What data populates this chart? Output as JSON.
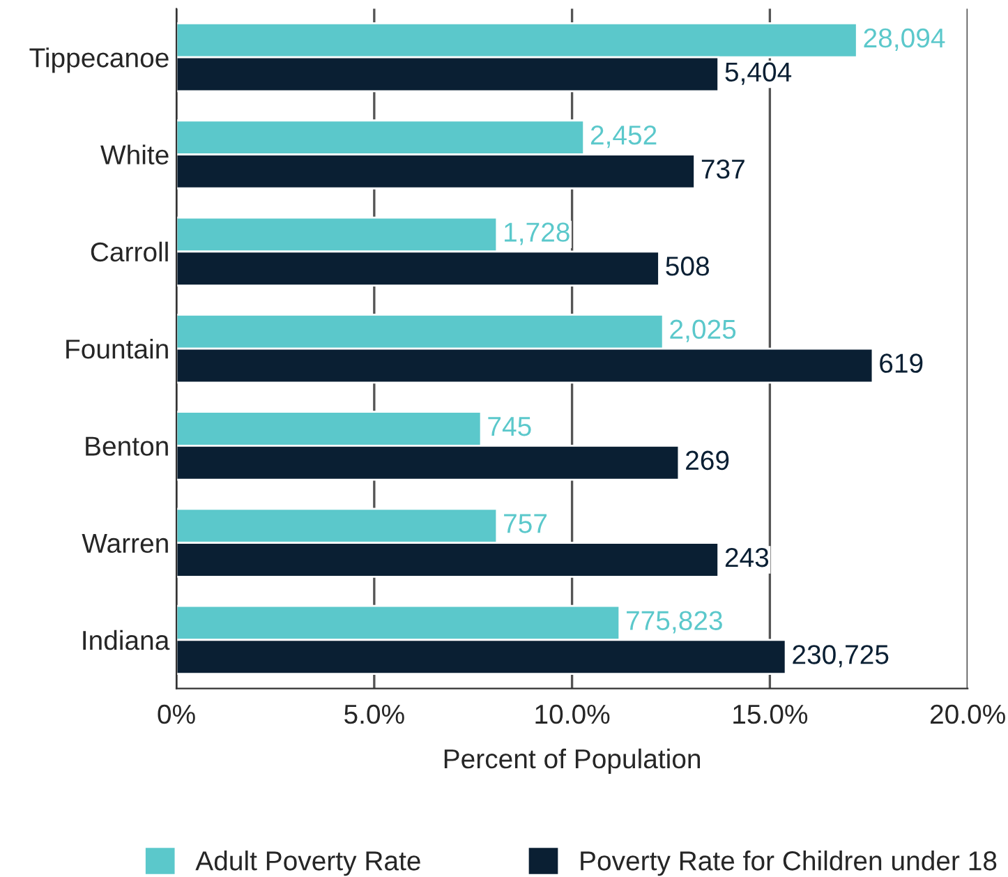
{
  "chart_data": {
    "type": "bar",
    "orientation": "horizontal",
    "xlabel": "Percent of Population",
    "categories": [
      "Tippecanoe",
      "White",
      "Carroll",
      "Fountain",
      "Benton",
      "Warren",
      "Indiana"
    ],
    "series": [
      {
        "name": "Adult Poverty Rate",
        "color": "#5bc8cb",
        "values": [
          17.2,
          10.3,
          8.1,
          12.3,
          7.7,
          8.1,
          11.2
        ]
      },
      {
        "name": "Poverty Rate for Children under 18",
        "color": "#0a1f33",
        "values": [
          13.7,
          13.1,
          12.2,
          17.6,
          12.7,
          13.7,
          15.4
        ]
      }
    ],
    "annotations": [
      {
        "text": "28,094",
        "x": 17.2,
        "y": "Tippecanoe"
      },
      {
        "text": "5,404",
        "x": 13.7,
        "y": "Tippecanoe"
      },
      {
        "text": "2,452",
        "x": 10.3,
        "y": "White"
      },
      {
        "text": "737",
        "x": 13.1,
        "y": "White"
      },
      {
        "text": "1,728",
        "x": 8.1,
        "y": "Carroll"
      },
      {
        "text": "508",
        "x": 12.2,
        "y": "Carroll"
      },
      {
        "text": "2,025",
        "x": 12.3,
        "y": "Fountain"
      },
      {
        "text": "619",
        "x": 17.6,
        "y": "Fountain"
      },
      {
        "text": "745",
        "x": 7.7,
        "y": "Benton"
      },
      {
        "text": "269",
        "x": 12.7,
        "y": "Benton"
      },
      {
        "text": "757",
        "x": 8.1,
        "y": "Warren"
      },
      {
        "text": "243",
        "x": 13.7,
        "y": "Warren"
      },
      {
        "text": "775,823",
        "x": 11.2,
        "y": "Indiana"
      },
      {
        "text": "230,725",
        "x": 15.4,
        "y": "Indiana"
      }
    ],
    "xlim": [
      0,
      20
    ],
    "xticks": [
      {
        "value": 0,
        "label": "0%"
      },
      {
        "value": 5,
        "label": "5.0%"
      },
      {
        "value": 10,
        "label": "10.0%"
      },
      {
        "value": 15,
        "label": "15.0%"
      },
      {
        "value": 20,
        "label": "20.0%"
      }
    ],
    "grid": "x",
    "legend": "bottom"
  }
}
